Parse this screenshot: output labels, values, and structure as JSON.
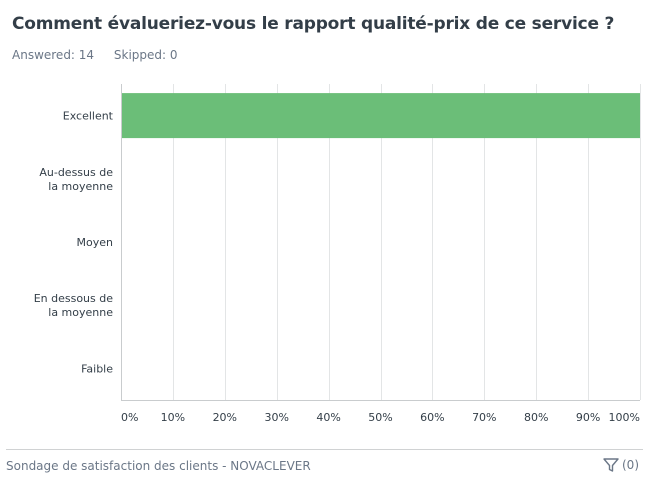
{
  "question": {
    "title": "Comment évalueriez-vous le rapport qualité-prix de ce service ?",
    "answered_text": "Answered: 14",
    "skipped_text": "Skipped: 0"
  },
  "chart_data": {
    "type": "bar",
    "orientation": "horizontal",
    "categories": [
      [
        "Excellent"
      ],
      [
        "Au-dessus de",
        "la moyenne"
      ],
      [
        "Moyen"
      ],
      [
        "En dessous de",
        "la moyenne"
      ],
      [
        "Faible"
      ]
    ],
    "values": [
      100,
      0,
      0,
      0,
      0
    ],
    "xlim": [
      0,
      100
    ],
    "x_ticks": [
      "0%",
      "10%",
      "20%",
      "30%",
      "40%",
      "50%",
      "60%",
      "70%",
      "80%",
      "90%",
      "100%"
    ],
    "grid": true,
    "bar_color": "#6bbe78"
  },
  "footer": {
    "survey_name": "Sondage de satisfaction des clients - NOVACLEVER",
    "filter_count": "(0)",
    "filter_icon": "filter-icon"
  }
}
